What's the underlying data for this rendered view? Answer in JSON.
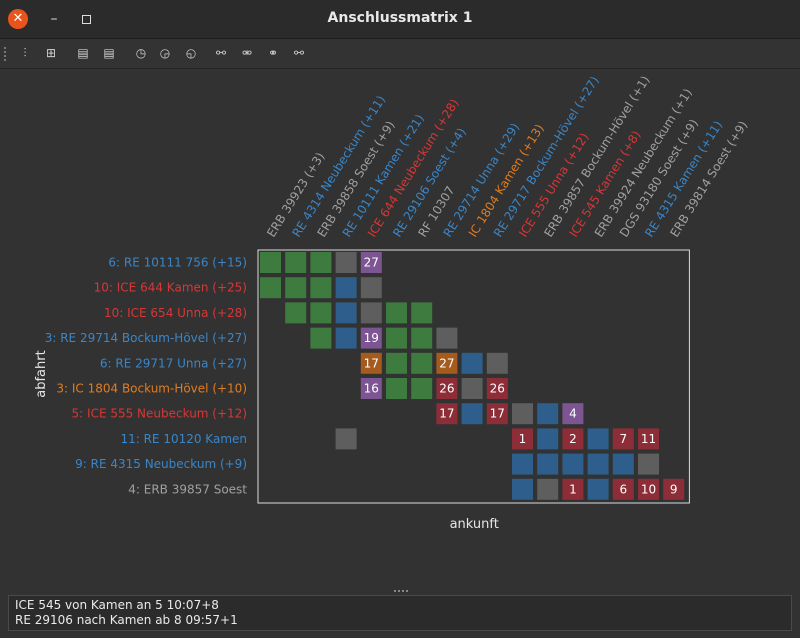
{
  "window": {
    "title": "Anschlussmatrix 1",
    "close_glyph": "✕",
    "minimize_glyph": "–"
  },
  "toolbar": {
    "tools": [
      {
        "icon": "settings-sliders-icon",
        "glyph": "⫶"
      },
      {
        "icon": "rearrange-icon",
        "glyph": "⊞"
      },
      {
        "icon": "train-plus-icon",
        "glyph": "▤"
      },
      {
        "icon": "train-minus-icon",
        "glyph": "▤"
      },
      {
        "icon": "clock-earlier-icon",
        "glyph": "◷"
      },
      {
        "icon": "clock-reset-icon",
        "glyph": "◶"
      },
      {
        "icon": "clock-later-icon",
        "glyph": "◵"
      },
      {
        "icon": "link-add-icon",
        "glyph": "⚯"
      },
      {
        "icon": "link-remove-icon",
        "glyph": "⚮"
      },
      {
        "icon": "link-delete-icon",
        "glyph": "⚭"
      },
      {
        "icon": "link-edit-icon",
        "glyph": "⚯"
      }
    ]
  },
  "colors": {
    "gray": "#a0a0a0",
    "blue": "#3a86c8",
    "red": "#d93636",
    "orange": "#e07c20",
    "cell_green": "#3d7b3f",
    "cell_gray": "#5e5e5e",
    "cell_blue": "#2e5f8c",
    "cell_red": "#8c2d37",
    "cell_purple": "#7c5592",
    "cell_orange": "#a55a1e",
    "plot_bg": "#323232",
    "plot_border": "#dcdcdc"
  },
  "chart_data": {
    "type": "heatmap",
    "xlabel": "ankunft",
    "ylabel": "abfahrt",
    "columns": [
      {
        "label": "ERB 39923  (+3)",
        "color": "gray"
      },
      {
        "label": "RE 4314 Neubeckum (+11)",
        "color": "blue"
      },
      {
        "label": "ERB 39858 Soest (+9)",
        "color": "gray"
      },
      {
        "label": "RE 10111 Kamen (+21)",
        "color": "blue"
      },
      {
        "label": "ICE 644 Neubeckum (+28)",
        "color": "red"
      },
      {
        "label": "RE 29106 Soest (+4)",
        "color": "blue"
      },
      {
        "label": "RF 10307",
        "color": "gray"
      },
      {
        "label": "RE 29714 Unna (+29)",
        "color": "blue"
      },
      {
        "label": "IC 1804 Kamen (+13)",
        "color": "orange"
      },
      {
        "label": "RE 29717 Bockum-Hövel (+27)",
        "color": "blue"
      },
      {
        "label": "ICE 555 Unna (+12)",
        "color": "red"
      },
      {
        "label": "ERB 39857 Bockum-Hövel (+1)",
        "color": "gray"
      },
      {
        "label": "ICE 545 Kamen (+8)",
        "color": "red"
      },
      {
        "label": "ERB 39924 Neubeckum (+1)",
        "color": "gray"
      },
      {
        "label": "DGS 93180 Soest (+9)",
        "color": "gray"
      },
      {
        "label": "RE 4315 Kamen (+11)",
        "color": "blue"
      },
      {
        "label": "ERB 39814 Soest (+9)",
        "color": "gray"
      }
    ],
    "rows": [
      {
        "label": "6: RE 10111 756 (+15)",
        "color": "blue"
      },
      {
        "label": "10: ICE 644 Kamen (+25)",
        "color": "red"
      },
      {
        "label": "10: ICE 654 Unna (+28)",
        "color": "red"
      },
      {
        "label": "3: RE 29714 Bockum-Hövel (+27)",
        "color": "blue"
      },
      {
        "label": "6: RE 29717 Unna (+27)",
        "color": "blue"
      },
      {
        "label": "3: IC 1804 Bockum-Hövel (+10)",
        "color": "orange"
      },
      {
        "label": "5: ICE 555 Neubeckum (+12)",
        "color": "red"
      },
      {
        "label": "11: RE 10120 Kamen",
        "color": "blue"
      },
      {
        "label": "9: RE 4315 Neubeckum (+9)",
        "color": "blue"
      },
      {
        "label": "4: ERB 39857 Soest",
        "color": "gray"
      }
    ],
    "cells": [
      {
        "r": 0,
        "c": 0,
        "k": "green",
        "t": ""
      },
      {
        "r": 0,
        "c": 1,
        "k": "green",
        "t": ""
      },
      {
        "r": 0,
        "c": 2,
        "k": "green",
        "t": ""
      },
      {
        "r": 0,
        "c": 3,
        "k": "gray",
        "t": ""
      },
      {
        "r": 0,
        "c": 4,
        "k": "purple",
        "t": "27"
      },
      {
        "r": 1,
        "c": 0,
        "k": "green",
        "t": ""
      },
      {
        "r": 1,
        "c": 1,
        "k": "green",
        "t": ""
      },
      {
        "r": 1,
        "c": 2,
        "k": "green",
        "t": ""
      },
      {
        "r": 1,
        "c": 3,
        "k": "blue",
        "t": ""
      },
      {
        "r": 1,
        "c": 4,
        "k": "gray",
        "t": ""
      },
      {
        "r": 2,
        "c": 1,
        "k": "green",
        "t": ""
      },
      {
        "r": 2,
        "c": 2,
        "k": "green",
        "t": ""
      },
      {
        "r": 2,
        "c": 3,
        "k": "blue",
        "t": ""
      },
      {
        "r": 2,
        "c": 4,
        "k": "gray",
        "t": ""
      },
      {
        "r": 2,
        "c": 5,
        "k": "green",
        "t": ""
      },
      {
        "r": 2,
        "c": 6,
        "k": "green",
        "t": ""
      },
      {
        "r": 3,
        "c": 2,
        "k": "green",
        "t": ""
      },
      {
        "r": 3,
        "c": 3,
        "k": "blue",
        "t": ""
      },
      {
        "r": 3,
        "c": 4,
        "k": "purple",
        "t": "19"
      },
      {
        "r": 3,
        "c": 5,
        "k": "green",
        "t": ""
      },
      {
        "r": 3,
        "c": 6,
        "k": "green",
        "t": ""
      },
      {
        "r": 3,
        "c": 7,
        "k": "gray",
        "t": ""
      },
      {
        "r": 4,
        "c": 4,
        "k": "orange",
        "t": "17"
      },
      {
        "r": 4,
        "c": 5,
        "k": "green",
        "t": ""
      },
      {
        "r": 4,
        "c": 6,
        "k": "green",
        "t": ""
      },
      {
        "r": 4,
        "c": 7,
        "k": "orange",
        "t": "27"
      },
      {
        "r": 4,
        "c": 8,
        "k": "blue",
        "t": ""
      },
      {
        "r": 4,
        "c": 9,
        "k": "gray",
        "t": ""
      },
      {
        "r": 5,
        "c": 4,
        "k": "purple",
        "t": "16"
      },
      {
        "r": 5,
        "c": 5,
        "k": "green",
        "t": ""
      },
      {
        "r": 5,
        "c": 6,
        "k": "green",
        "t": ""
      },
      {
        "r": 5,
        "c": 7,
        "k": "red",
        "t": "26"
      },
      {
        "r": 5,
        "c": 8,
        "k": "gray",
        "t": ""
      },
      {
        "r": 5,
        "c": 9,
        "k": "red",
        "t": "26"
      },
      {
        "r": 6,
        "c": 7,
        "k": "red",
        "t": "17"
      },
      {
        "r": 6,
        "c": 8,
        "k": "blue",
        "t": ""
      },
      {
        "r": 6,
        "c": 9,
        "k": "red",
        "t": "17"
      },
      {
        "r": 6,
        "c": 10,
        "k": "gray",
        "t": ""
      },
      {
        "r": 6,
        "c": 11,
        "k": "blue",
        "t": ""
      },
      {
        "r": 6,
        "c": 12,
        "k": "purple",
        "t": "4"
      },
      {
        "r": 7,
        "c": 3,
        "k": "gray",
        "t": ""
      },
      {
        "r": 7,
        "c": 10,
        "k": "red",
        "t": "1"
      },
      {
        "r": 7,
        "c": 11,
        "k": "blue",
        "t": ""
      },
      {
        "r": 7,
        "c": 12,
        "k": "red",
        "t": "2"
      },
      {
        "r": 7,
        "c": 13,
        "k": "blue",
        "t": ""
      },
      {
        "r": 7,
        "c": 14,
        "k": "red",
        "t": "7"
      },
      {
        "r": 7,
        "c": 15,
        "k": "red",
        "t": "11"
      },
      {
        "r": 8,
        "c": 10,
        "k": "blue",
        "t": ""
      },
      {
        "r": 8,
        "c": 11,
        "k": "blue",
        "t": ""
      },
      {
        "r": 8,
        "c": 12,
        "k": "blue",
        "t": ""
      },
      {
        "r": 8,
        "c": 13,
        "k": "blue",
        "t": ""
      },
      {
        "r": 8,
        "c": 14,
        "k": "blue",
        "t": ""
      },
      {
        "r": 8,
        "c": 15,
        "k": "gray",
        "t": ""
      },
      {
        "r": 9,
        "c": 10,
        "k": "blue",
        "t": ""
      },
      {
        "r": 9,
        "c": 11,
        "k": "gray",
        "t": ""
      },
      {
        "r": 9,
        "c": 12,
        "k": "red",
        "t": "1"
      },
      {
        "r": 9,
        "c": 13,
        "k": "blue",
        "t": ""
      },
      {
        "r": 9,
        "c": 14,
        "k": "red",
        "t": "6"
      },
      {
        "r": 9,
        "c": 15,
        "k": "red",
        "t": "10"
      },
      {
        "r": 9,
        "c": 16,
        "k": "red",
        "t": "9"
      }
    ]
  },
  "status": {
    "line1": "ICE 545 von Kamen an 5 10:07+8",
    "line2": "RE 29106 nach Kamen ab 8 09:57+1"
  }
}
